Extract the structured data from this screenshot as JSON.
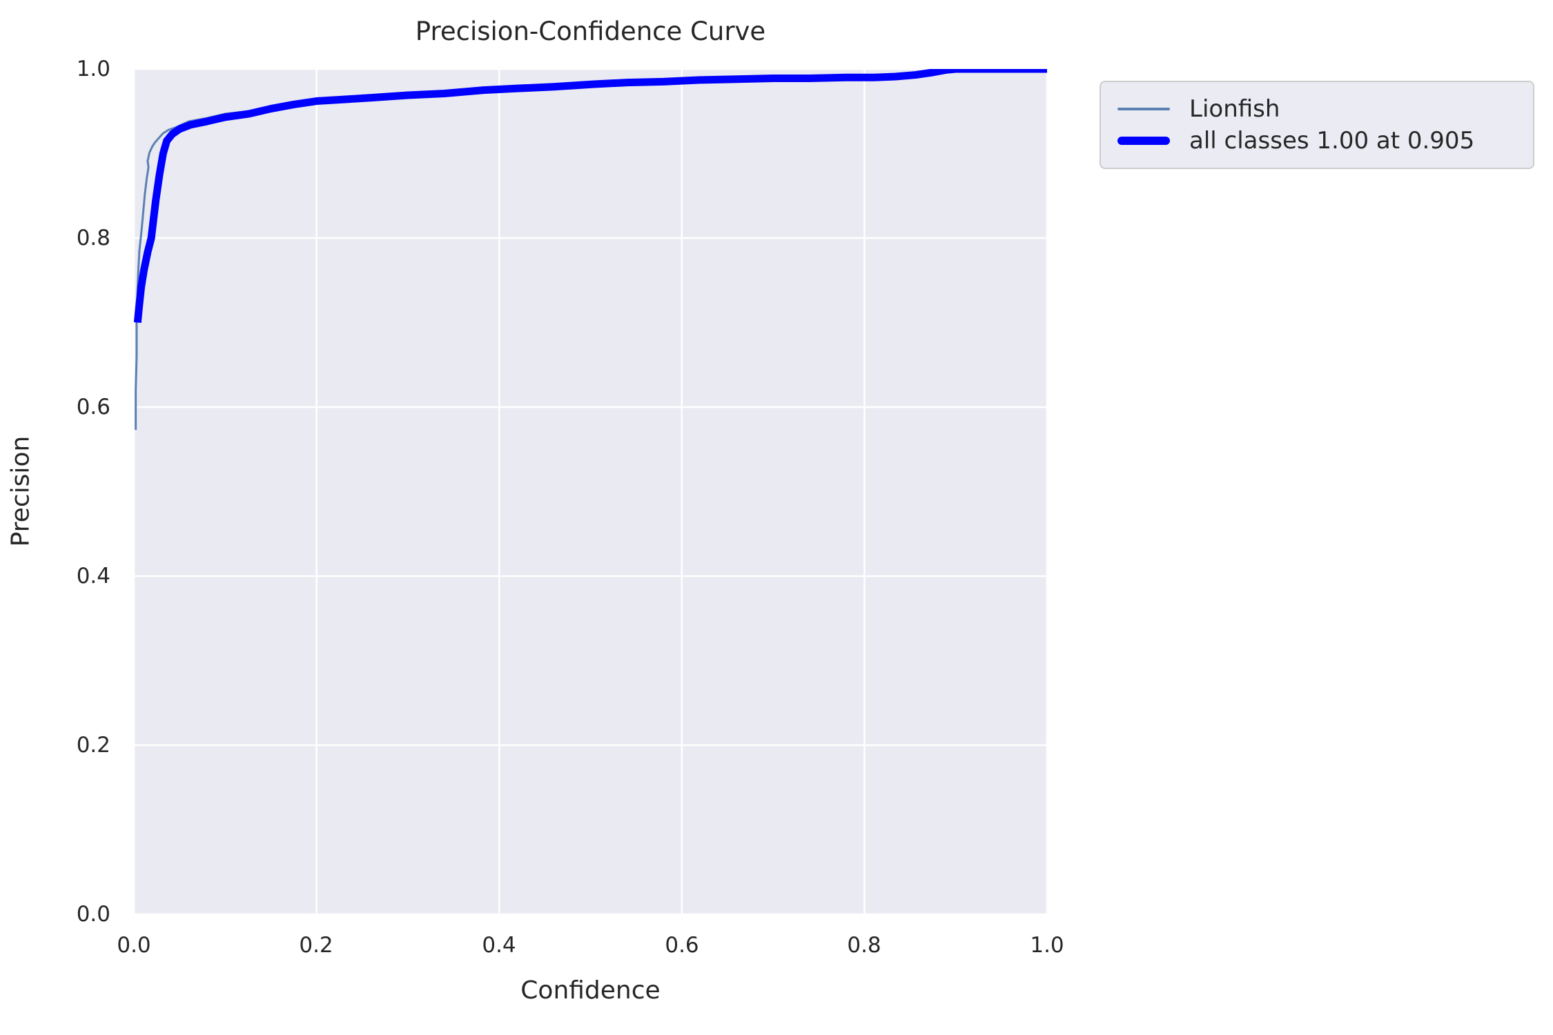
{
  "figure": {
    "title": "Precision-Confidence Curve"
  },
  "axes": {
    "xlabel": "Confidence",
    "ylabel": "Precision",
    "x_ticks": [
      "0.0",
      "0.2",
      "0.4",
      "0.6",
      "0.8",
      "1.0"
    ],
    "y_ticks": [
      "0.0",
      "0.2",
      "0.4",
      "0.6",
      "0.8",
      "1.0"
    ],
    "panel_bg": "#eaeaf2",
    "grid_color": "#ffffff"
  },
  "legend": {
    "items": [
      {
        "label": "Lionfish",
        "color": "#5b80b2",
        "thick": false
      },
      {
        "label": "all classes 1.00 at 0.905",
        "color": "#0000ff",
        "thick": true
      }
    ]
  },
  "chart_data": {
    "type": "line",
    "title": "Precision-Confidence Curve",
    "xlabel": "Confidence",
    "ylabel": "Precision",
    "xlim": [
      0.0,
      1.0
    ],
    "ylim": [
      0.0,
      1.0
    ],
    "grid": true,
    "legend_position": "outside upper right",
    "series": [
      {
        "name": "Lionfish",
        "color": "#5b80b2",
        "linewidth": 3,
        "x": [
          0.002,
          0.002,
          0.003,
          0.003,
          0.004,
          0.005,
          0.006,
          0.008,
          0.01,
          0.012,
          0.014,
          0.016,
          0.015,
          0.017,
          0.02,
          0.023,
          0.027,
          0.032,
          0.038,
          0.046,
          0.06,
          0.08,
          0.1,
          0.126,
          0.15,
          0.175,
          0.2,
          0.23,
          0.26,
          0.3,
          0.34,
          0.383,
          0.42,
          0.46,
          0.504,
          0.54,
          0.58,
          0.62,
          0.66,
          0.7,
          0.74,
          0.78,
          0.81,
          0.834,
          0.856,
          0.875,
          0.89,
          0.9,
          0.905,
          0.95,
          1.0
        ],
        "y": [
          0.573,
          0.62,
          0.66,
          0.7,
          0.74,
          0.765,
          0.785,
          0.805,
          0.828,
          0.852,
          0.87,
          0.884,
          0.891,
          0.901,
          0.908,
          0.913,
          0.918,
          0.924,
          0.928,
          0.931,
          0.938,
          0.942,
          0.947,
          0.95,
          0.955,
          0.96,
          0.963,
          0.965,
          0.967,
          0.97,
          0.972,
          0.976,
          0.978,
          0.98,
          0.982,
          0.984,
          0.985,
          0.987,
          0.988,
          0.989,
          0.989,
          0.99,
          0.99,
          0.991,
          0.993,
          0.996,
          0.999,
          1.0,
          1.0,
          1.0,
          1.0
        ]
      },
      {
        "name": "all classes 1.00 at 0.905",
        "color": "#0000ff",
        "linewidth": 11,
        "x": [
          0.004,
          0.006,
          0.008,
          0.011,
          0.015,
          0.019,
          0.024,
          0.028,
          0.032,
          0.036,
          0.042,
          0.05,
          0.062,
          0.08,
          0.1,
          0.126,
          0.15,
          0.175,
          0.2,
          0.23,
          0.26,
          0.3,
          0.34,
          0.383,
          0.42,
          0.46,
          0.504,
          0.54,
          0.58,
          0.62,
          0.66,
          0.7,
          0.74,
          0.78,
          0.81,
          0.834,
          0.856,
          0.875,
          0.89,
          0.9,
          0.905,
          0.95,
          1.0
        ],
        "y": [
          0.7,
          0.722,
          0.742,
          0.762,
          0.783,
          0.8,
          0.845,
          0.875,
          0.9,
          0.915,
          0.923,
          0.929,
          0.934,
          0.938,
          0.943,
          0.947,
          0.953,
          0.958,
          0.962,
          0.964,
          0.966,
          0.969,
          0.971,
          0.975,
          0.977,
          0.979,
          0.982,
          0.984,
          0.985,
          0.987,
          0.988,
          0.989,
          0.989,
          0.99,
          0.99,
          0.991,
          0.993,
          0.996,
          0.999,
          1.0,
          1.0,
          1.0,
          1.0
        ]
      }
    ]
  }
}
